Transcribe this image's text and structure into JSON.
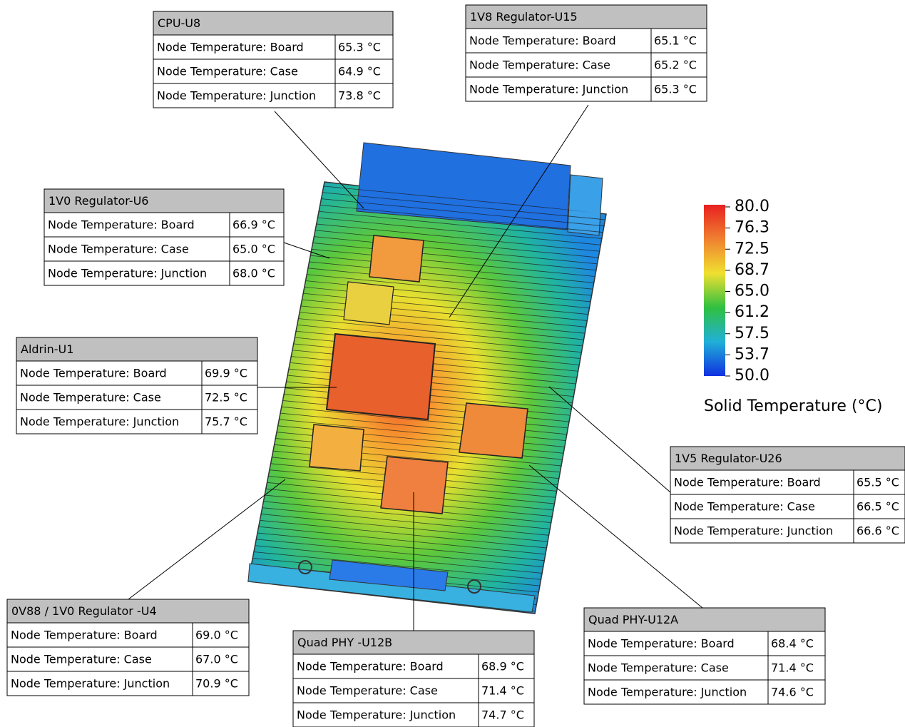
{
  "callouts": [
    {
      "title": "CPU-U8",
      "rows": [
        [
          "Node Temperature: Board",
          "65.3 °C"
        ],
        [
          "Node Temperature: Case",
          "64.9 °C"
        ],
        [
          "Node Temperature: Junction",
          "73.8 °C"
        ]
      ]
    },
    {
      "title": "1V8 Regulator-U15",
      "rows": [
        [
          "Node Temperature: Board",
          "65.1 °C"
        ],
        [
          "Node Temperature: Case",
          "65.2 °C"
        ],
        [
          "Node Temperature: Junction",
          "65.3 °C"
        ]
      ]
    },
    {
      "title": "1V0 Regulator-U6",
      "rows": [
        [
          "Node Temperature: Board",
          "66.9 °C"
        ],
        [
          "Node Temperature: Case",
          "65.0 °C"
        ],
        [
          "Node Temperature: Junction",
          "68.0 °C"
        ]
      ]
    },
    {
      "title": "Aldrin-U1",
      "rows": [
        [
          "Node Temperature: Board",
          "69.9 °C"
        ],
        [
          "Node Temperature: Case",
          "72.5 °C"
        ],
        [
          "Node Temperature: Junction",
          "75.7 °C"
        ]
      ]
    },
    {
      "title": "1V5 Regulator-U26",
      "rows": [
        [
          "Node Temperature: Board",
          "65.5 °C"
        ],
        [
          "Node Temperature: Case",
          "66.5 °C"
        ],
        [
          "Node Temperature: Junction",
          "66.6 °C"
        ]
      ]
    },
    {
      "title": "0V88 / 1V0 Regulator -U4",
      "rows": [
        [
          "Node Temperature: Board",
          "69.0 °C"
        ],
        [
          "Node Temperature: Case",
          "67.0 °C"
        ],
        [
          "Node Temperature: Junction",
          "70.9 °C"
        ]
      ]
    },
    {
      "title": "Quad PHY -U12B",
      "rows": [
        [
          "Node Temperature: Board",
          "68.9 °C"
        ],
        [
          "Node Temperature: Case",
          "71.4 °C"
        ],
        [
          "Node Temperature: Junction",
          "74.7 °C"
        ]
      ]
    },
    {
      "title": "Quad PHY-U12A",
      "rows": [
        [
          "Node Temperature: Board",
          "68.4 °C"
        ],
        [
          "Node Temperature: Case",
          "71.4 °C"
        ],
        [
          "Node Temperature: Junction",
          "74.6 °C"
        ]
      ]
    }
  ],
  "legend": {
    "ticks": [
      "80.0",
      "76.3",
      "72.5",
      "68.7",
      "65.0",
      "61.2",
      "57.5",
      "53.7",
      "50.0"
    ],
    "title": "Solid Temperature (°C)"
  }
}
